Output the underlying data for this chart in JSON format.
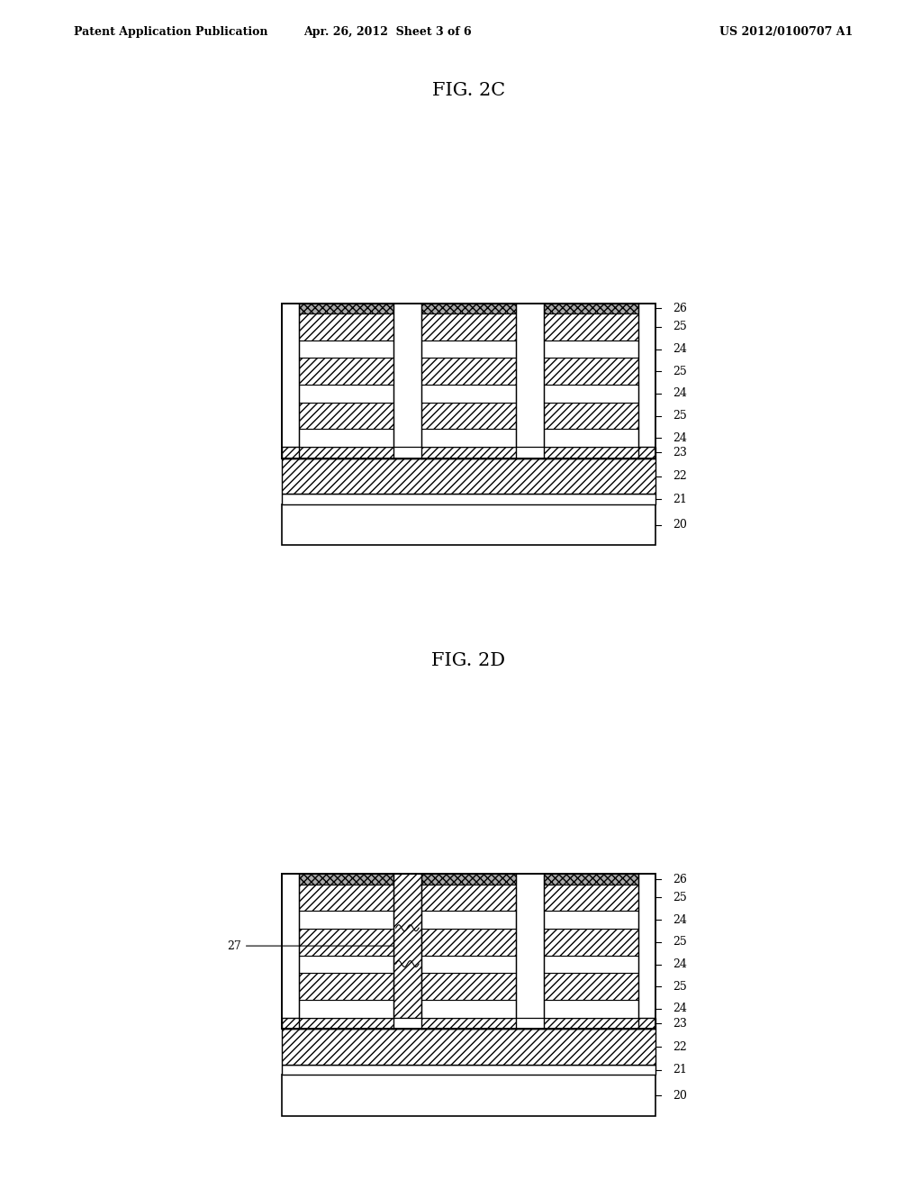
{
  "background_color": "#ffffff",
  "header_left": "Patent Application Publication",
  "header_center": "Apr. 26, 2012  Sheet 3 of 6",
  "header_right": "US 2012/0100707 A1",
  "fig2c_label": "FIG. 2C",
  "fig2d_label": "FIG. 2D"
}
